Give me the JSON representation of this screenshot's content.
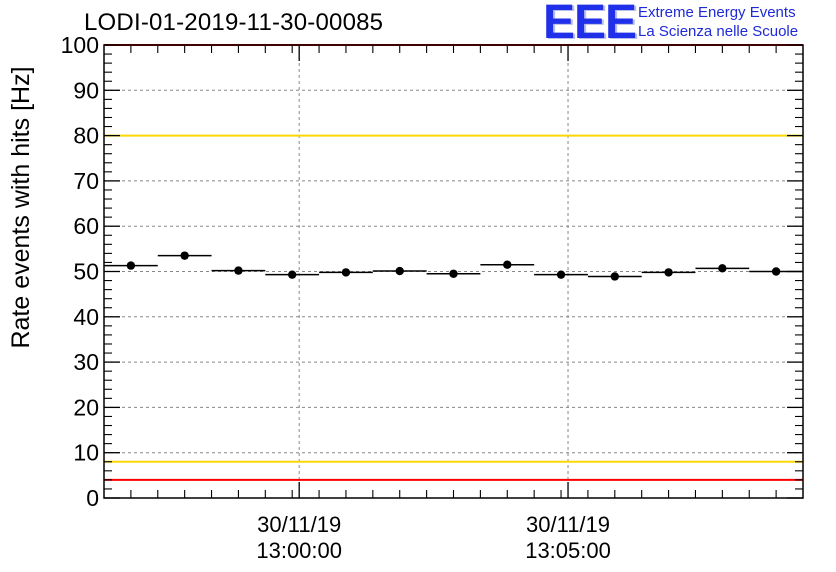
{
  "title": "LODI-01-2019-11-30-00085",
  "logo": {
    "mark": "EEE",
    "line1": "Extreme Energy Events",
    "line2": "La Scienza nelle Scuole"
  },
  "colors": {
    "red_line": "#ff0000",
    "yellow_line": "#ffd700",
    "grid": "#888888",
    "marker": "#000000",
    "logo": "#2030e8"
  },
  "chart_data": {
    "type": "scatter",
    "title": "LODI-01-2019-11-30-00085",
    "xlabel": "",
    "ylabel": "Rate events with hits [Hz]",
    "ylim": [
      0,
      100
    ],
    "yticks": [
      0,
      10,
      20,
      30,
      40,
      50,
      60,
      70,
      80,
      90,
      100
    ],
    "x_unit": "minutes after 12:56:22",
    "xlim": [
      0,
      13
    ],
    "xticks": [
      {
        "x": 3.63,
        "date": "30/11/19",
        "time": "13:00:00"
      },
      {
        "x": 8.63,
        "date": "30/11/19",
        "time": "13:05:00"
      }
    ],
    "x_minor_step": 0.5,
    "series": [
      {
        "name": "rate",
        "x": [
          0.5,
          1.5,
          2.5,
          3.5,
          4.5,
          5.5,
          6.5,
          7.5,
          8.5,
          9.5,
          10.5,
          11.5,
          12.5
        ],
        "values": [
          51.3,
          53.5,
          50.2,
          49.3,
          49.8,
          50.1,
          49.5,
          51.5,
          49.3,
          48.9,
          49.8,
          50.7,
          50.0
        ],
        "x_half_width": 0.5
      }
    ],
    "reference_lines": [
      {
        "y": 100,
        "color": "red"
      },
      {
        "y": 80,
        "color": "yellow"
      },
      {
        "y": 8,
        "color": "yellow"
      },
      {
        "y": 4,
        "color": "red"
      }
    ],
    "grid": true
  }
}
